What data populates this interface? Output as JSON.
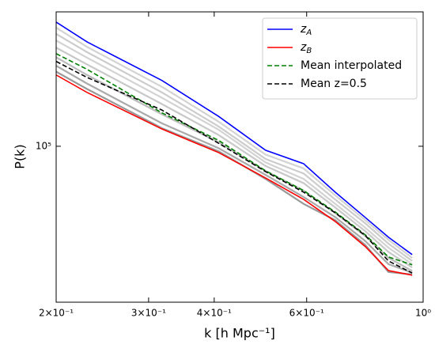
{
  "chart_data": {
    "type": "line",
    "xlabel": "k [h Mpc⁻¹]",
    "ylabel": "P(k)",
    "x": [
      0.2,
      0.229,
      0.318,
      0.408,
      0.501,
      0.592,
      0.68,
      0.776,
      0.859,
      0.953
    ],
    "xlim": [
      0.2,
      1.0
    ],
    "ylim": [
      20800,
      387000
    ],
    "xlog": true,
    "ylog": true,
    "xticks": [
      {
        "value": 0.2,
        "label": "2×10⁻¹"
      },
      {
        "value": 0.3,
        "label": "3×10⁻¹"
      },
      {
        "value": 0.4,
        "label": "4×10⁻¹"
      },
      {
        "value": 0.6,
        "label": "6×10⁻¹"
      },
      {
        "value": 1,
        "label": "10⁰"
      }
    ],
    "yticks": [
      {
        "value": 100000,
        "label": "10⁵"
      }
    ],
    "legend": "upper right",
    "series": [
      {
        "color": "#d3d3d3",
        "values": [
          330000,
          272000,
          182000,
          128000,
          92000,
          80000,
          61000,
          47500,
          39000,
          32500
        ]
      },
      {
        "color": "#cccccc",
        "values": [
          310000,
          258000,
          172000,
          122000,
          88000,
          76000,
          58500,
          46000,
          37500,
          31500
        ]
      },
      {
        "color": "#d3d3d3",
        "values": [
          290000,
          244000,
          163000,
          118000,
          85000,
          72000,
          56000,
          44000,
          36000,
          30500
        ]
      },
      {
        "color": "#c8c8c8",
        "values": [
          270000,
          228000,
          153000,
          112000,
          82000,
          69000,
          54000,
          42500,
          34500,
          29500
        ]
      },
      {
        "color": "#bbbbbb",
        "values": [
          245000,
          205000,
          138000,
          104000,
          78000,
          64000,
          51000,
          40500,
          32500,
          28500
        ]
      },
      {
        "color": "#aaaaaa",
        "values": [
          225000,
          188000,
          126000,
          98000,
          75000,
          60000,
          49000,
          38500,
          30500,
          28000
        ]
      },
      {
        "color": "#999999",
        "values": [
          212000,
          178000,
          120000,
          95000,
          72000,
          56000,
          47500,
          37000,
          28200,
          27500
        ]
      },
      {
        "name": "z_A",
        "color": "#0000ff",
        "values": [
          349000,
          286000,
          194000,
          135000,
          96100,
          83900,
          63000,
          48800,
          40000,
          33600
        ]
      },
      {
        "name": "z_B",
        "color": "#ff0000",
        "values": [
          205000,
          172000,
          119000,
          93800,
          72700,
          58600,
          46900,
          36400,
          28600,
          27300
        ]
      },
      {
        "name": "Mean interpolated",
        "color": "#008000",
        "linestyle": "--",
        "values": [
          254000,
          217000,
          140000,
          106000,
          78100,
          64000,
          51600,
          41000,
          32800,
          30300
        ]
      },
      {
        "name": "Mean z=0.5",
        "color": "#000000",
        "linestyle": "--",
        "values": [
          235000,
          200000,
          144000,
          103000,
          77500,
          63000,
          51200,
          40700,
          31500,
          27900
        ]
      }
    ]
  }
}
